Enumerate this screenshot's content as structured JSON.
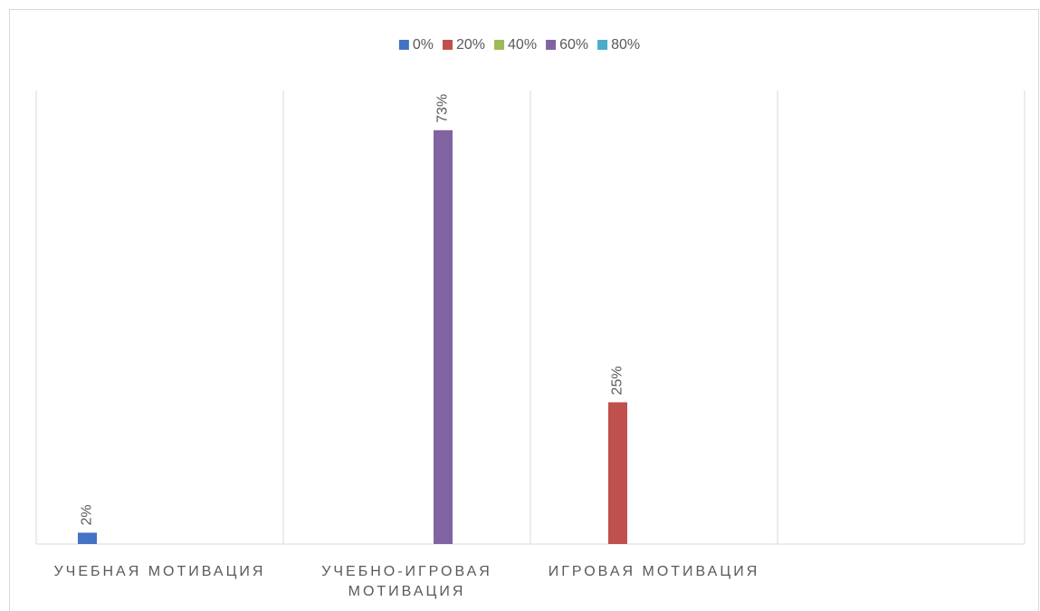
{
  "chart_data": {
    "type": "bar",
    "categories": [
      "УЧЕБНАЯ МОТИВАЦИЯ",
      "УЧЕБНО-ИГРОВАЯ МОТИВАЦИЯ",
      "ИГРОВАЯ МОТИВАЦИЯ",
      null
    ],
    "series": [
      {
        "name": "0%",
        "color": "#4472c4",
        "values": [
          2,
          null,
          null,
          null
        ],
        "value_labels": [
          "2%",
          null,
          null,
          null
        ]
      },
      {
        "name": "20%",
        "color": "#c0504d",
        "values": [
          null,
          null,
          25,
          null
        ],
        "value_labels": [
          null,
          null,
          "25%",
          null
        ]
      },
      {
        "name": "40%",
        "color": "#9bbb59",
        "values": [
          null,
          null,
          null,
          null
        ]
      },
      {
        "name": "60%",
        "color": "#8064a2",
        "values": [
          null,
          73,
          null,
          null
        ],
        "value_labels": [
          null,
          "73%",
          null,
          null
        ]
      },
      {
        "name": "80%",
        "color": "#4bacc6",
        "values": [
          null,
          null,
          null,
          null
        ]
      }
    ],
    "ylim": [
      0,
      80
    ],
    "legend": "top",
    "grid": true
  }
}
